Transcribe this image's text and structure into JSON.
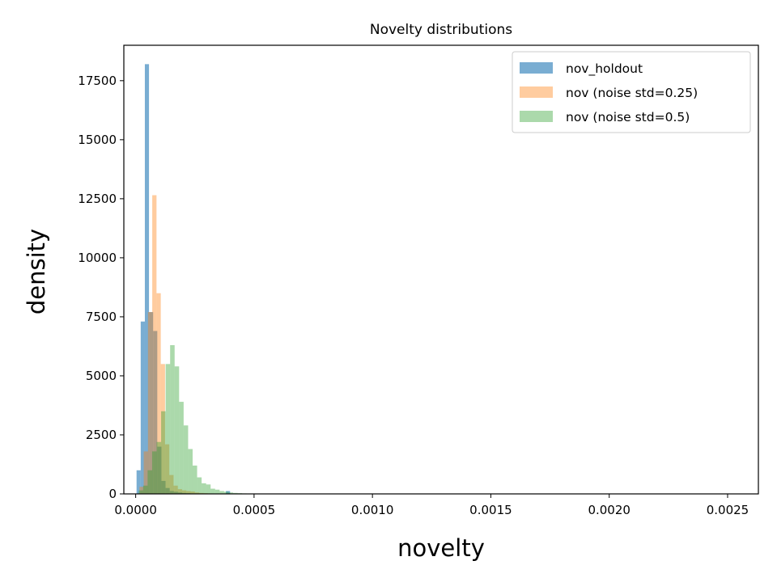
{
  "chart_data": {
    "type": "bar",
    "subtype": "histogram",
    "title": "Novelty distributions",
    "xlabel": "novelty",
    "ylabel": "density",
    "xlim": [
      -5e-05,
      0.00263
    ],
    "ylim": [
      0,
      19000
    ],
    "x_ticks": [
      0,
      0.0005,
      0.001,
      0.0015,
      0.002,
      0.0025
    ],
    "x_tick_labels": [
      "0.0000",
      "0.0005",
      "0.0010",
      "0.0015",
      "0.0020",
      "0.0025"
    ],
    "y_ticks": [
      0,
      2500,
      5000,
      7500,
      10000,
      12500,
      15000,
      17500
    ],
    "y_tick_labels": [
      "0",
      "2500",
      "5000",
      "7500",
      "10000",
      "12500",
      "15000",
      "17500"
    ],
    "grid": false,
    "legend": {
      "placement": "top-right"
    },
    "series": [
      {
        "name": "nov_holdout",
        "color": "#1f77b4",
        "alpha": 0.6,
        "bin_width": 1.75e-05,
        "bins": [
          [
            1.25e-05,
            1000
          ],
          [
            3e-05,
            7300
          ],
          [
            4.75e-05,
            18200
          ],
          [
            6.5e-05,
            7700
          ],
          [
            8.25e-05,
            6900
          ],
          [
            0.0001,
            2000
          ],
          [
            0.0001175,
            550
          ],
          [
            0.000135,
            250
          ],
          [
            0.0001525,
            120
          ],
          [
            0.00017,
            90
          ],
          [
            0.0001875,
            60
          ],
          [
            0.000205,
            40
          ],
          [
            0.0002225,
            30
          ],
          [
            0.00024,
            20
          ],
          [
            0.0002575,
            20
          ],
          [
            0.000275,
            15
          ],
          [
            0.00031,
            10
          ],
          [
            0.00034,
            10
          ],
          [
            0.00039,
            120
          ],
          [
            0.00046,
            10
          ],
          [
            0.00052,
            10
          ],
          [
            0.00058,
            10
          ],
          [
            0.00065,
            10
          ],
          [
            0.00072,
            10
          ],
          [
            0.00082,
            10
          ],
          [
            0.00095,
            10
          ],
          [
            0.0011,
            10
          ],
          [
            0.0013,
            5
          ],
          [
            0.0015,
            5
          ],
          [
            0.0018,
            5
          ],
          [
            0.0021,
            5
          ],
          [
            0.00248,
            5
          ]
        ]
      },
      {
        "name": "nov (noise std=0.25)",
        "color": "#ff7f0e",
        "alpha": 0.4,
        "bin_width": 1.8e-05,
        "bins": [
          [
            2.5e-05,
            300
          ],
          [
            4.3e-05,
            1800
          ],
          [
            6.1e-05,
            7700
          ],
          [
            7.9e-05,
            12650
          ],
          [
            9.7e-05,
            8500
          ],
          [
            0.000115,
            5500
          ],
          [
            0.000133,
            2100
          ],
          [
            0.000151,
            800
          ],
          [
            0.000169,
            350
          ],
          [
            0.000187,
            200
          ],
          [
            0.000205,
            150
          ],
          [
            0.000223,
            120
          ],
          [
            0.000241,
            100
          ],
          [
            0.000259,
            60
          ],
          [
            0.000277,
            40
          ],
          [
            0.000295,
            30
          ],
          [
            0.000313,
            20
          ],
          [
            0.00034,
            15
          ],
          [
            0.00038,
            10
          ],
          [
            0.00043,
            10
          ],
          [
            0.0005,
            5
          ]
        ]
      },
      {
        "name": "nov (noise std=0.5)",
        "color": "#2ca02c",
        "alpha": 0.4,
        "bin_width": 1.9e-05,
        "bins": [
          [
            2.2e-05,
            150
          ],
          [
            4.1e-05,
            350
          ],
          [
            6e-05,
            1000
          ],
          [
            7.9e-05,
            1800
          ],
          [
            9.8e-05,
            2200
          ],
          [
            0.000117,
            3500
          ],
          [
            0.000136,
            5500
          ],
          [
            0.000155,
            6300
          ],
          [
            0.000174,
            5400
          ],
          [
            0.000193,
            3900
          ],
          [
            0.000212,
            2900
          ],
          [
            0.000231,
            1900
          ],
          [
            0.00025,
            1200
          ],
          [
            0.000269,
            700
          ],
          [
            0.000288,
            450
          ],
          [
            0.000307,
            400
          ],
          [
            0.000326,
            220
          ],
          [
            0.000345,
            180
          ],
          [
            0.000364,
            120
          ],
          [
            0.000383,
            90
          ],
          [
            0.000402,
            60
          ],
          [
            0.000421,
            40
          ],
          [
            0.00044,
            30
          ],
          [
            0.000459,
            20
          ],
          [
            0.000478,
            15
          ],
          [
            0.000497,
            10
          ],
          [
            0.000516,
            10
          ],
          [
            0.00056,
            5
          ],
          [
            0.0006,
            5
          ]
        ]
      }
    ]
  }
}
